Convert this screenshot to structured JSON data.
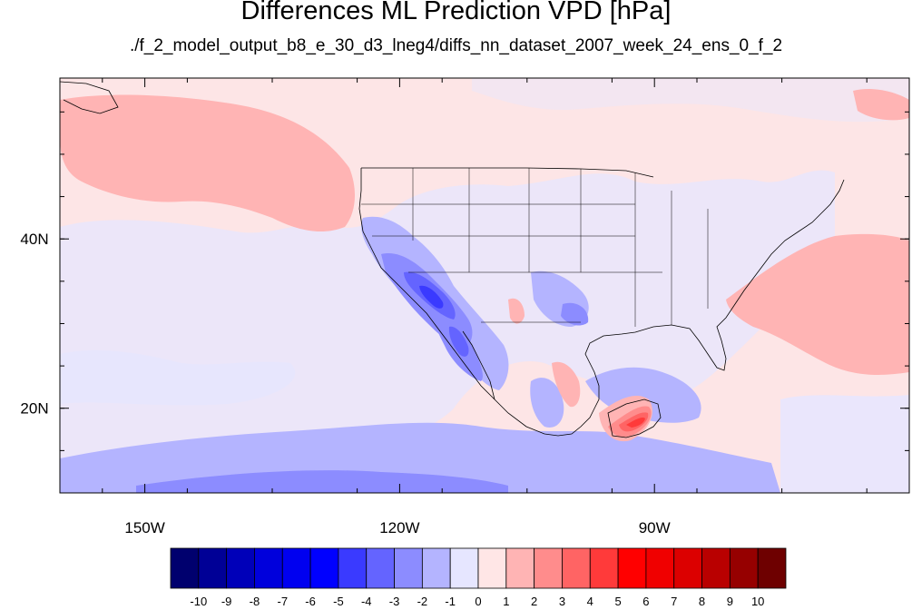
{
  "title": "Differences ML Prediction VPD [hPa]",
  "subtitle": "./f_2_model_output_b8_e_30_d3_lneg4/diffs_nn_dataset_2007_week_24_ens_0_f_2",
  "map": {
    "lon_range": [
      -160,
      -60
    ],
    "lat_range": [
      10,
      59
    ],
    "lon_ticks": [
      {
        "lon": -150,
        "label": "150W"
      },
      {
        "lon": -120,
        "label": "120W"
      },
      {
        "lon": -90,
        "label": "90W"
      }
    ],
    "lat_ticks": [
      {
        "lat": 40,
        "label": "40N"
      },
      {
        "lat": 20,
        "label": "20N"
      }
    ],
    "background_color": "#fde5e6"
  },
  "colorbar": {
    "labels": [
      "-10",
      "-9",
      "-8",
      "-7",
      "-6",
      "-5",
      "-4",
      "-3",
      "-2",
      "-1",
      "0",
      "1",
      "2",
      "3",
      "4",
      "5",
      "6",
      "7",
      "8",
      "9",
      "10"
    ],
    "colors": [
      "#00006e",
      "#000096",
      "#0000b9",
      "#0000dc",
      "#0000f0",
      "#0000ff",
      "#3a3aff",
      "#6464ff",
      "#8c8cff",
      "#b4b4ff",
      "#e6e6ff",
      "#ffe6e6",
      "#ffb4b4",
      "#ff8c8c",
      "#ff6464",
      "#ff3a3a",
      "#ff0000",
      "#f00000",
      "#dc0000",
      "#b90000",
      "#960000",
      "#6e0000"
    ]
  }
}
